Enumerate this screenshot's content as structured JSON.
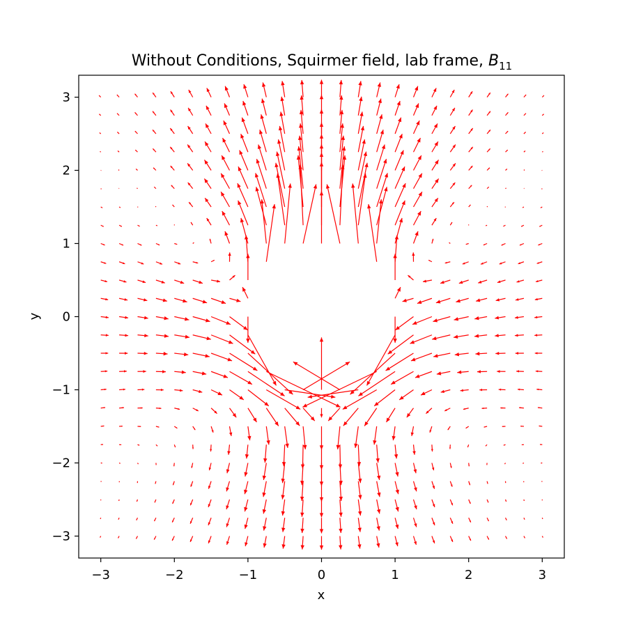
{
  "chart_data": {
    "type": "quiver",
    "title_main": "Without Conditions, Squirmer field, lab frame, ",
    "title_symbol": "B",
    "title_subscript": "11",
    "xlabel": "x",
    "ylabel": "y",
    "xlim": [
      -3.3,
      3.3
    ],
    "ylim": [
      -3.3,
      3.3
    ],
    "xticks": [
      -3,
      -2,
      -1,
      0,
      1,
      2,
      3
    ],
    "yticks": [
      -3,
      -2,
      -1,
      0,
      1,
      2,
      3
    ],
    "xtick_labels": [
      "−3",
      "−2",
      "−1",
      "0",
      "1",
      "2",
      "3"
    ],
    "ytick_labels": [
      "−3",
      "−2",
      "−1",
      "0",
      "1",
      "2",
      "3"
    ],
    "grid": false,
    "arrow_color": "#ff0000",
    "field": {
      "grid_range": [
        -3,
        3
      ],
      "grid_points": 25,
      "excluded_radius": 1,
      "model": "squirmer B1 + B2 (pusher), lab frame"
    }
  }
}
